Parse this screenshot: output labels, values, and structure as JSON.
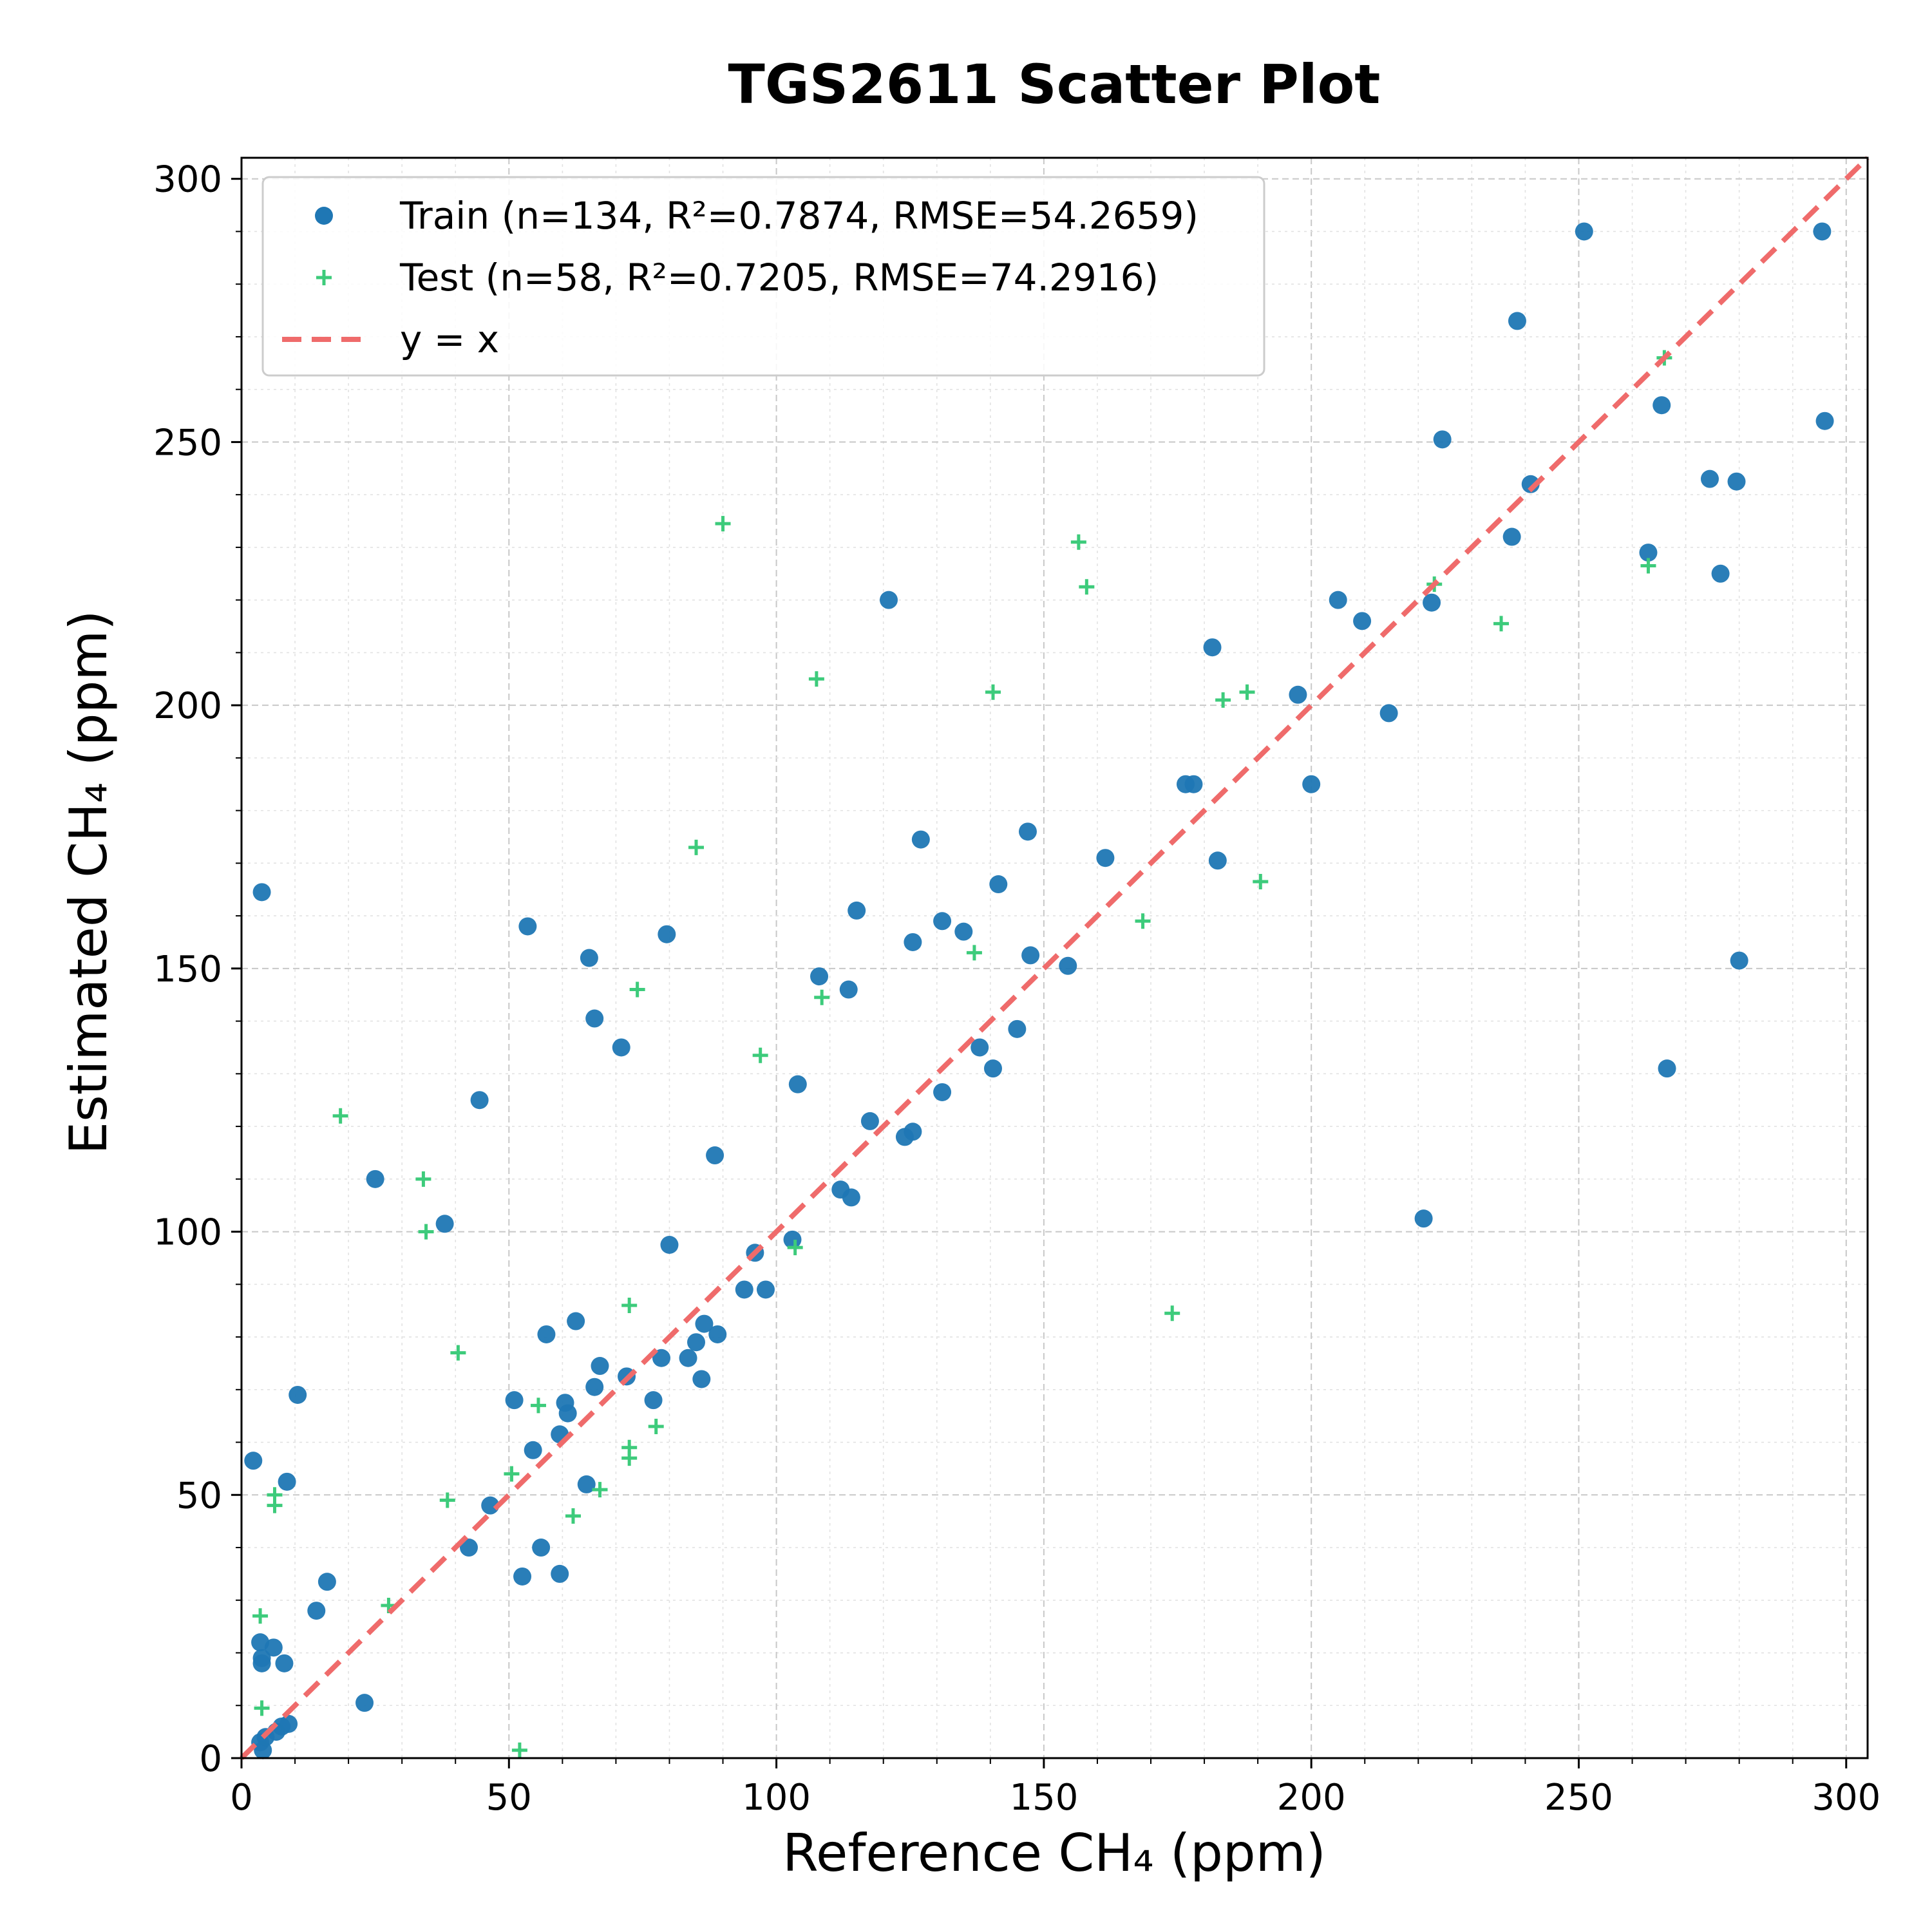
{
  "chart_data": {
    "type": "scatter",
    "title": "TGS2611 Scatter Plot",
    "xlabel": "Reference CH₄ (ppm)",
    "ylabel": "Estimated CH₄ (ppm)",
    "xlim": [
      0,
      304
    ],
    "ylim": [
      0,
      304
    ],
    "xticks": [
      0,
      50,
      100,
      150,
      200,
      250,
      300
    ],
    "yticks": [
      0,
      50,
      100,
      150,
      200,
      250,
      300
    ],
    "grid": true,
    "legend_position": "top-left",
    "series": [
      {
        "name": "Train (n=134, R²=0.7874, RMSE=54.2659)",
        "marker": "circle",
        "color": "#1f77b4",
        "points": [
          [
            2.2,
            56.5
          ],
          [
            3.8,
            164.5
          ],
          [
            3.5,
            22
          ],
          [
            3.8,
            19
          ],
          [
            3.8,
            18
          ],
          [
            3.5,
            3
          ],
          [
            4,
            1.5
          ],
          [
            4.5,
            4
          ],
          [
            6,
            21
          ],
          [
            6.5,
            5
          ],
          [
            7.5,
            6
          ],
          [
            8,
            18
          ],
          [
            8.5,
            52.5
          ],
          [
            8.8,
            6.5
          ],
          [
            10.5,
            69
          ],
          [
            14,
            28
          ],
          [
            16,
            33.5
          ],
          [
            23,
            10.5
          ],
          [
            25,
            110
          ],
          [
            38,
            101.5
          ],
          [
            42.5,
            40
          ],
          [
            44.5,
            125
          ],
          [
            46.5,
            48
          ],
          [
            51,
            68
          ],
          [
            52.5,
            34.5
          ],
          [
            53.5,
            158
          ],
          [
            54.5,
            58.5
          ],
          [
            56,
            40
          ],
          [
            57,
            80.5
          ],
          [
            59.5,
            35
          ],
          [
            59.5,
            61.5
          ],
          [
            60.5,
            67.5
          ],
          [
            61,
            65.5
          ],
          [
            62.5,
            83
          ],
          [
            64.5,
            52
          ],
          [
            65,
            152
          ],
          [
            66,
            70.5
          ],
          [
            66,
            140.5
          ],
          [
            67,
            74.5
          ],
          [
            71,
            135
          ],
          [
            72,
            72.5
          ],
          [
            77,
            68
          ],
          [
            78.5,
            76
          ],
          [
            79.5,
            156.5
          ],
          [
            80,
            97.5
          ],
          [
            83.5,
            76
          ],
          [
            85,
            79
          ],
          [
            86,
            72
          ],
          [
            86.5,
            82.5
          ],
          [
            88.5,
            114.5
          ],
          [
            89,
            80.5
          ],
          [
            94,
            89
          ],
          [
            96,
            96
          ],
          [
            98,
            89
          ],
          [
            103,
            98.5
          ],
          [
            104,
            128
          ],
          [
            108,
            148.5
          ],
          [
            112,
            108
          ],
          [
            113.5,
            146
          ],
          [
            114,
            106.5
          ],
          [
            115,
            161
          ],
          [
            117.5,
            121
          ],
          [
            121,
            220
          ],
          [
            124,
            118
          ],
          [
            125.5,
            155
          ],
          [
            125.5,
            119
          ],
          [
            127,
            174.5
          ],
          [
            131,
            159
          ],
          [
            131,
            126.5
          ],
          [
            135,
            157
          ],
          [
            138,
            135
          ],
          [
            140.5,
            131
          ],
          [
            141.5,
            166
          ],
          [
            145,
            138.5
          ],
          [
            147,
            176
          ],
          [
            147.5,
            152.5
          ],
          [
            154.5,
            150.5
          ],
          [
            161.5,
            171
          ],
          [
            176.5,
            185
          ],
          [
            178,
            185
          ],
          [
            181.5,
            211
          ],
          [
            182.5,
            170.5
          ],
          [
            197.5,
            202
          ],
          [
            200,
            185
          ],
          [
            205,
            220
          ],
          [
            209.5,
            216
          ],
          [
            214.5,
            198.5
          ],
          [
            221,
            102.5
          ],
          [
            222.5,
            219.5
          ],
          [
            224.5,
            250.5
          ],
          [
            237.5,
            232
          ],
          [
            238.5,
            273
          ],
          [
            241,
            242
          ],
          [
            251,
            290
          ],
          [
            263,
            229
          ],
          [
            265.5,
            257
          ],
          [
            266.5,
            131
          ],
          [
            274.5,
            243
          ],
          [
            276.5,
            225
          ],
          [
            279.5,
            242.5
          ],
          [
            280,
            151.5
          ],
          [
            295.5,
            290
          ],
          [
            296,
            254
          ]
        ]
      },
      {
        "name": "Test (n=58, R²=0.7205, RMSE=74.2916)",
        "marker": "plus",
        "color": "#3dcb7b",
        "points": [
          [
            3.5,
            27
          ],
          [
            3.8,
            9.5
          ],
          [
            6.2,
            50
          ],
          [
            6.2,
            48
          ],
          [
            18.5,
            122
          ],
          [
            27.5,
            29
          ],
          [
            34,
            110
          ],
          [
            34.5,
            100
          ],
          [
            38.5,
            49
          ],
          [
            40.5,
            77
          ],
          [
            50.5,
            54
          ],
          [
            52,
            1.5
          ],
          [
            55.5,
            67
          ],
          [
            62,
            46
          ],
          [
            67,
            51
          ],
          [
            72.5,
            86
          ],
          [
            72.5,
            59
          ],
          [
            72.5,
            57
          ],
          [
            74,
            146
          ],
          [
            77.5,
            63
          ],
          [
            85,
            173
          ],
          [
            90,
            234.5
          ],
          [
            97,
            133.5
          ],
          [
            103.5,
            97
          ],
          [
            107.5,
            205
          ],
          [
            108.5,
            144.5
          ],
          [
            137,
            153
          ],
          [
            140.5,
            202.5
          ],
          [
            156.5,
            231
          ],
          [
            158,
            222.5
          ],
          [
            168.5,
            159
          ],
          [
            174,
            84.5
          ],
          [
            183.5,
            201
          ],
          [
            188,
            202.5
          ],
          [
            190.5,
            166.5
          ],
          [
            223,
            223
          ],
          [
            235.5,
            215.5
          ],
          [
            263,
            226.5
          ],
          [
            266,
            266
          ]
        ]
      },
      {
        "name": "y = x",
        "marker": "dashed-line",
        "color": "#ef6b6b",
        "points": [
          [
            0,
            0
          ],
          [
            304,
            304
          ]
        ]
      }
    ]
  }
}
